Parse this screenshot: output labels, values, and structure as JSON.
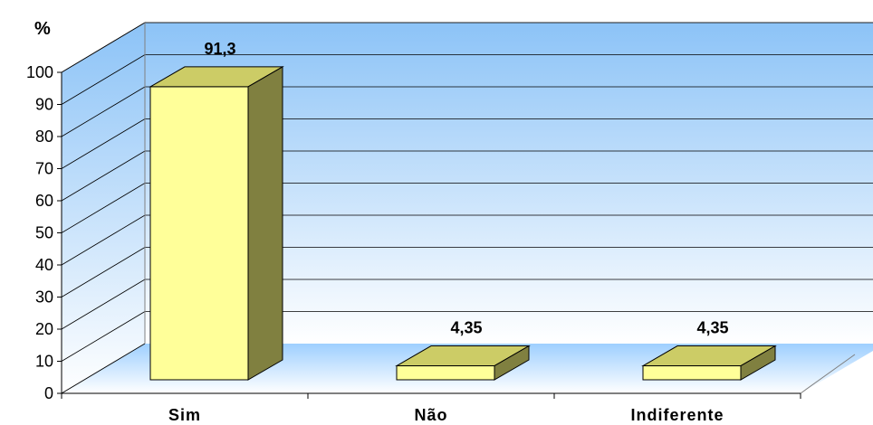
{
  "chart_data": {
    "type": "bar",
    "ylabel": "%",
    "categories": [
      "Sim",
      "Não",
      "Indiferente"
    ],
    "values": [
      91.3,
      4.35,
      4.35
    ],
    "value_labels": [
      "91,3",
      "4,35",
      "4,35"
    ],
    "ylim": [
      0,
      100
    ],
    "yticks": [
      0,
      10,
      20,
      30,
      40,
      50,
      60,
      70,
      80,
      90,
      100
    ],
    "grid": true,
    "three_d": true,
    "legend": "none",
    "colors": {
      "bar_front": "#FFFF99",
      "bar_top": "#CCCC66",
      "bar_side": "#808040",
      "back_wall_top": "#99CCFF",
      "back_wall_bottom": "#FFFFFF",
      "floor": "#99CCFF"
    }
  }
}
